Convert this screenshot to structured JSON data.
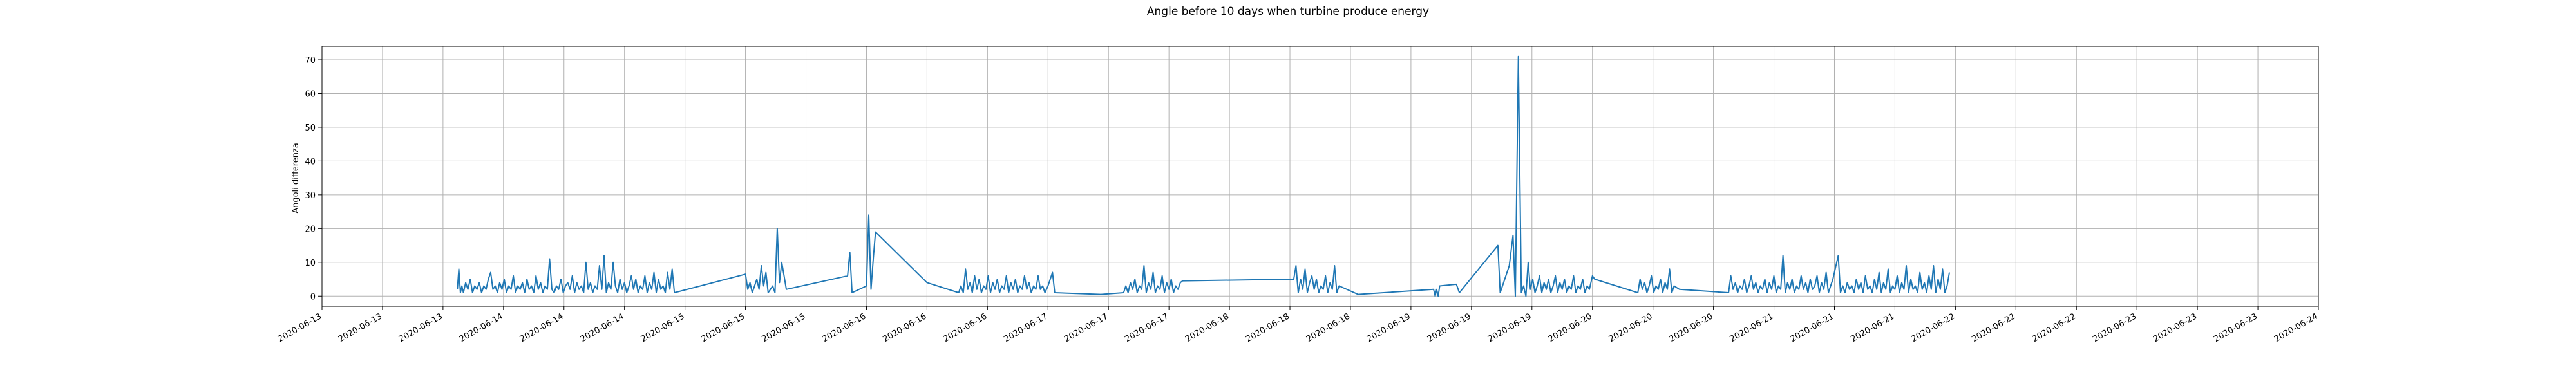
{
  "chart_data": {
    "type": "line",
    "title": "Angle before 10 days when turbine produce energy",
    "xlabel": "",
    "ylabel": "Angoli differenza",
    "grid": true,
    "x_tick_labels": [
      "2020-06-13",
      "2020-06-13",
      "2020-06-13",
      "2020-06-14",
      "2020-06-14",
      "2020-06-14",
      "2020-06-15",
      "2020-06-15",
      "2020-06-15",
      "2020-06-16",
      "2020-06-16",
      "2020-06-16",
      "2020-06-17",
      "2020-06-17",
      "2020-06-17",
      "2020-06-18",
      "2020-06-18",
      "2020-06-18",
      "2020-06-19",
      "2020-06-19",
      "2020-06-19",
      "2020-06-20",
      "2020-06-20",
      "2020-06-20",
      "2020-06-21",
      "2020-06-21",
      "2020-06-21",
      "2020-06-22",
      "2020-06-22",
      "2020-06-22",
      "2020-06-23",
      "2020-06-23",
      "2020-06-23",
      "2020-06-24"
    ],
    "x_tick_hours": [
      0,
      8,
      16,
      24,
      32,
      40,
      48,
      56,
      64,
      72,
      80,
      88,
      96,
      104,
      112,
      120,
      128,
      136,
      144,
      152,
      160,
      168,
      176,
      184,
      192,
      200,
      208,
      216,
      224,
      232,
      240,
      248,
      256,
      264
    ],
    "xlim_hours": [
      0,
      264
    ],
    "ylim": [
      -3,
      74
    ],
    "y_ticks": [
      0,
      10,
      20,
      30,
      40,
      50,
      60,
      70
    ],
    "series_color": "#1f77b4",
    "points": [
      [
        17.9,
        2
      ],
      [
        18.1,
        8
      ],
      [
        18.3,
        1
      ],
      [
        18.5,
        3
      ],
      [
        18.7,
        1
      ],
      [
        19.0,
        4
      ],
      [
        19.3,
        2
      ],
      [
        19.6,
        5
      ],
      [
        19.9,
        1
      ],
      [
        20.2,
        3
      ],
      [
        20.5,
        2
      ],
      [
        20.8,
        4
      ],
      [
        21.1,
        1
      ],
      [
        21.4,
        3
      ],
      [
        21.7,
        2
      ],
      [
        22.0,
        5
      ],
      [
        22.3,
        7
      ],
      [
        22.6,
        2
      ],
      [
        22.9,
        3
      ],
      [
        23.2,
        1
      ],
      [
        23.5,
        4
      ],
      [
        23.8,
        2
      ],
      [
        24.1,
        5
      ],
      [
        24.4,
        1
      ],
      [
        24.7,
        3
      ],
      [
        25.0,
        2
      ],
      [
        25.3,
        6
      ],
      [
        25.6,
        1
      ],
      [
        25.9,
        3
      ],
      [
        26.2,
        2
      ],
      [
        26.5,
        4
      ],
      [
        26.8,
        1
      ],
      [
        27.1,
        5
      ],
      [
        27.4,
        2
      ],
      [
        27.7,
        3
      ],
      [
        28.0,
        1
      ],
      [
        28.3,
        6
      ],
      [
        28.6,
        2
      ],
      [
        28.9,
        4
      ],
      [
        29.2,
        1
      ],
      [
        29.5,
        3
      ],
      [
        29.8,
        2
      ],
      [
        30.1,
        11
      ],
      [
        30.4,
        2
      ],
      [
        30.7,
        1
      ],
      [
        31.0,
        3
      ],
      [
        31.3,
        2
      ],
      [
        31.6,
        5
      ],
      [
        31.9,
        1
      ],
      [
        32.2,
        3
      ],
      [
        32.5,
        4
      ],
      [
        32.8,
        2
      ],
      [
        33.1,
        6
      ],
      [
        33.4,
        1
      ],
      [
        33.7,
        4
      ],
      [
        34.0,
        2
      ],
      [
        34.3,
        3
      ],
      [
        34.6,
        1
      ],
      [
        34.9,
        10
      ],
      [
        35.2,
        2
      ],
      [
        35.5,
        4
      ],
      [
        35.8,
        1
      ],
      [
        36.1,
        3
      ],
      [
        36.4,
        2
      ],
      [
        36.7,
        9
      ],
      [
        37.0,
        2
      ],
      [
        37.3,
        12
      ],
      [
        37.6,
        1
      ],
      [
        37.9,
        4
      ],
      [
        38.2,
        2
      ],
      [
        38.5,
        10
      ],
      [
        38.8,
        3
      ],
      [
        39.1,
        1
      ],
      [
        39.4,
        5
      ],
      [
        39.7,
        2
      ],
      [
        40.0,
        4
      ],
      [
        40.3,
        1
      ],
      [
        40.6,
        3
      ],
      [
        40.9,
        6
      ],
      [
        41.2,
        2
      ],
      [
        41.5,
        5
      ],
      [
        41.8,
        1
      ],
      [
        42.1,
        3
      ],
      [
        42.4,
        2
      ],
      [
        42.7,
        6
      ],
      [
        43.0,
        1
      ],
      [
        43.3,
        4
      ],
      [
        43.6,
        2
      ],
      [
        43.9,
        7
      ],
      [
        44.2,
        1
      ],
      [
        44.5,
        5
      ],
      [
        44.8,
        2
      ],
      [
        45.1,
        3
      ],
      [
        45.4,
        1
      ],
      [
        45.7,
        7
      ],
      [
        46.0,
        2
      ],
      [
        46.3,
        8
      ],
      [
        46.6,
        1
      ],
      [
        56.0,
        6.5
      ],
      [
        56.3,
        2
      ],
      [
        56.6,
        4
      ],
      [
        56.9,
        1
      ],
      [
        57.2,
        3
      ],
      [
        57.5,
        5
      ],
      [
        57.8,
        2
      ],
      [
        58.1,
        9
      ],
      [
        58.4,
        3
      ],
      [
        58.7,
        7
      ],
      [
        59.0,
        1
      ],
      [
        59.3,
        2
      ],
      [
        59.6,
        3
      ],
      [
        59.9,
        1
      ],
      [
        60.2,
        20
      ],
      [
        60.5,
        4
      ],
      [
        60.8,
        10
      ],
      [
        61.1,
        6
      ],
      [
        61.4,
        2
      ],
      [
        69.5,
        6
      ],
      [
        69.8,
        13
      ],
      [
        70.1,
        1
      ],
      [
        72.0,
        3
      ],
      [
        72.3,
        24
      ],
      [
        72.6,
        2
      ],
      [
        72.9,
        11
      ],
      [
        73.2,
        19
      ],
      [
        80.0,
        4
      ],
      [
        84.2,
        1
      ],
      [
        84.5,
        3
      ],
      [
        84.8,
        1
      ],
      [
        85.1,
        8
      ],
      [
        85.4,
        2
      ],
      [
        85.7,
        4
      ],
      [
        86.0,
        1
      ],
      [
        86.3,
        6
      ],
      [
        86.6,
        2
      ],
      [
        86.9,
        5
      ],
      [
        87.2,
        1
      ],
      [
        87.5,
        3
      ],
      [
        87.8,
        2
      ],
      [
        88.1,
        6
      ],
      [
        88.4,
        1
      ],
      [
        88.7,
        4
      ],
      [
        89.0,
        2
      ],
      [
        89.3,
        5
      ],
      [
        89.6,
        1
      ],
      [
        89.9,
        3
      ],
      [
        90.2,
        2
      ],
      [
        90.5,
        6
      ],
      [
        90.8,
        1
      ],
      [
        91.1,
        4
      ],
      [
        91.4,
        2
      ],
      [
        91.7,
        5
      ],
      [
        92.0,
        1
      ],
      [
        92.3,
        3
      ],
      [
        92.6,
        2
      ],
      [
        92.9,
        6
      ],
      [
        93.2,
        2
      ],
      [
        93.5,
        4
      ],
      [
        93.8,
        1
      ],
      [
        94.1,
        3
      ],
      [
        94.4,
        2
      ],
      [
        94.7,
        6
      ],
      [
        95.0,
        2
      ],
      [
        95.3,
        3
      ],
      [
        95.6,
        1
      ],
      [
        96.0,
        3
      ],
      [
        96.3,
        5
      ],
      [
        96.6,
        7
      ],
      [
        96.9,
        1
      ],
      [
        103.0,
        0.5
      ],
      [
        106.0,
        1
      ],
      [
        106.3,
        3
      ],
      [
        106.6,
        1
      ],
      [
        106.9,
        4
      ],
      [
        107.2,
        2
      ],
      [
        107.5,
        5
      ],
      [
        107.8,
        1
      ],
      [
        108.1,
        3
      ],
      [
        108.4,
        2
      ],
      [
        108.7,
        9
      ],
      [
        109.0,
        1
      ],
      [
        109.3,
        4
      ],
      [
        109.6,
        2
      ],
      [
        109.9,
        7
      ],
      [
        110.2,
        1
      ],
      [
        110.5,
        3
      ],
      [
        110.8,
        2
      ],
      [
        111.1,
        6
      ],
      [
        111.4,
        1
      ],
      [
        111.7,
        4
      ],
      [
        112.0,
        2
      ],
      [
        112.3,
        5
      ],
      [
        112.6,
        1
      ],
      [
        112.9,
        3
      ],
      [
        113.2,
        2
      ],
      [
        113.5,
        4
      ],
      [
        113.8,
        4.5
      ],
      [
        128.5,
        5
      ],
      [
        128.8,
        9
      ],
      [
        129.1,
        1
      ],
      [
        129.4,
        5
      ],
      [
        129.7,
        2
      ],
      [
        130.0,
        8
      ],
      [
        130.3,
        1
      ],
      [
        130.6,
        4
      ],
      [
        130.9,
        6
      ],
      [
        131.2,
        2
      ],
      [
        131.5,
        5
      ],
      [
        131.8,
        1
      ],
      [
        132.1,
        3
      ],
      [
        132.4,
        2
      ],
      [
        132.7,
        6
      ],
      [
        133.0,
        1
      ],
      [
        133.3,
        4
      ],
      [
        133.6,
        2
      ],
      [
        133.9,
        9
      ],
      [
        134.2,
        1
      ],
      [
        134.5,
        3
      ],
      [
        137.0,
        0.5
      ],
      [
        147.0,
        2
      ],
      [
        147.2,
        0
      ],
      [
        147.4,
        2
      ],
      [
        147.6,
        0
      ],
      [
        147.8,
        3
      ],
      [
        150.0,
        3.5
      ],
      [
        150.4,
        1
      ],
      [
        155.5,
        15
      ],
      [
        155.8,
        1
      ],
      [
        157.0,
        9
      ],
      [
        157.5,
        18
      ],
      [
        157.8,
        0
      ],
      [
        158.2,
        71
      ],
      [
        158.6,
        1
      ],
      [
        158.9,
        3
      ],
      [
        159.2,
        0
      ],
      [
        159.5,
        10
      ],
      [
        159.8,
        2
      ],
      [
        160.1,
        5
      ],
      [
        160.4,
        1
      ],
      [
        160.7,
        3
      ],
      [
        161.0,
        6
      ],
      [
        161.3,
        1
      ],
      [
        161.6,
        4
      ],
      [
        161.9,
        2
      ],
      [
        162.2,
        5
      ],
      [
        162.5,
        1
      ],
      [
        162.8,
        3
      ],
      [
        163.1,
        6
      ],
      [
        163.4,
        1
      ],
      [
        163.7,
        4
      ],
      [
        164.0,
        2
      ],
      [
        164.3,
        5
      ],
      [
        164.6,
        1
      ],
      [
        164.9,
        3
      ],
      [
        165.2,
        2
      ],
      [
        165.5,
        6
      ],
      [
        165.8,
        1
      ],
      [
        166.1,
        3
      ],
      [
        166.4,
        2
      ],
      [
        166.7,
        5
      ],
      [
        167.0,
        1
      ],
      [
        167.3,
        3
      ],
      [
        167.6,
        2
      ],
      [
        168.0,
        6
      ],
      [
        168.3,
        5
      ],
      [
        174.0,
        1
      ],
      [
        174.3,
        5
      ],
      [
        174.6,
        2
      ],
      [
        174.9,
        4
      ],
      [
        175.2,
        1
      ],
      [
        175.5,
        3
      ],
      [
        175.8,
        6
      ],
      [
        176.1,
        1
      ],
      [
        176.4,
        3
      ],
      [
        176.7,
        2
      ],
      [
        177.0,
        5
      ],
      [
        177.3,
        1
      ],
      [
        177.6,
        4
      ],
      [
        177.9,
        2
      ],
      [
        178.2,
        8
      ],
      [
        178.5,
        1
      ],
      [
        178.8,
        3
      ],
      [
        179.5,
        2
      ],
      [
        186.0,
        1
      ],
      [
        186.3,
        6
      ],
      [
        186.6,
        2
      ],
      [
        186.9,
        4
      ],
      [
        187.2,
        1
      ],
      [
        187.5,
        3
      ],
      [
        187.8,
        2
      ],
      [
        188.1,
        5
      ],
      [
        188.4,
        1
      ],
      [
        188.7,
        3
      ],
      [
        189.0,
        6
      ],
      [
        189.3,
        2
      ],
      [
        189.6,
        4
      ],
      [
        189.9,
        1
      ],
      [
        190.2,
        3
      ],
      [
        190.5,
        2
      ],
      [
        190.8,
        5
      ],
      [
        191.1,
        1
      ],
      [
        191.4,
        4
      ],
      [
        191.7,
        2
      ],
      [
        192.0,
        6
      ],
      [
        192.3,
        1
      ],
      [
        192.6,
        3
      ],
      [
        192.9,
        2
      ],
      [
        193.2,
        12
      ],
      [
        193.5,
        1
      ],
      [
        193.8,
        4
      ],
      [
        194.1,
        2
      ],
      [
        194.4,
        5
      ],
      [
        194.7,
        1
      ],
      [
        195.0,
        3
      ],
      [
        195.3,
        2
      ],
      [
        195.6,
        6
      ],
      [
        195.9,
        2
      ],
      [
        196.2,
        4
      ],
      [
        196.5,
        1
      ],
      [
        196.8,
        5
      ],
      [
        197.1,
        2
      ],
      [
        197.4,
        3
      ],
      [
        197.7,
        6
      ],
      [
        198.0,
        1
      ],
      [
        198.3,
        4
      ],
      [
        198.6,
        2
      ],
      [
        198.9,
        7
      ],
      [
        199.2,
        1
      ],
      [
        199.5,
        3
      ],
      [
        199.8,
        5
      ],
      [
        200.5,
        12
      ],
      [
        200.8,
        1
      ],
      [
        201.1,
        3
      ],
      [
        201.4,
        1
      ],
      [
        201.7,
        4
      ],
      [
        202.0,
        2
      ],
      [
        202.3,
        3
      ],
      [
        202.6,
        1
      ],
      [
        202.9,
        5
      ],
      [
        203.2,
        2
      ],
      [
        203.5,
        4
      ],
      [
        203.8,
        1
      ],
      [
        204.1,
        6
      ],
      [
        204.4,
        2
      ],
      [
        204.7,
        3
      ],
      [
        205.0,
        1
      ],
      [
        205.3,
        5
      ],
      [
        205.6,
        2
      ],
      [
        205.9,
        7
      ],
      [
        206.2,
        1
      ],
      [
        206.5,
        4
      ],
      [
        206.8,
        2
      ],
      [
        207.1,
        8
      ],
      [
        207.4,
        1
      ],
      [
        207.7,
        3
      ],
      [
        208.0,
        2
      ],
      [
        208.3,
        6
      ],
      [
        208.6,
        1
      ],
      [
        208.9,
        4
      ],
      [
        209.2,
        2
      ],
      [
        209.5,
        9
      ],
      [
        209.8,
        1
      ],
      [
        210.1,
        5
      ],
      [
        210.4,
        2
      ],
      [
        210.7,
        3
      ],
      [
        211.0,
        1
      ],
      [
        211.3,
        7
      ],
      [
        211.6,
        2
      ],
      [
        211.9,
        4
      ],
      [
        212.2,
        1
      ],
      [
        212.5,
        6
      ],
      [
        212.8,
        2
      ],
      [
        213.1,
        9
      ],
      [
        213.4,
        1
      ],
      [
        213.7,
        5
      ],
      [
        214.0,
        2
      ],
      [
        214.3,
        8
      ],
      [
        214.6,
        1
      ],
      [
        214.9,
        3
      ],
      [
        215.2,
        7
      ]
    ]
  }
}
